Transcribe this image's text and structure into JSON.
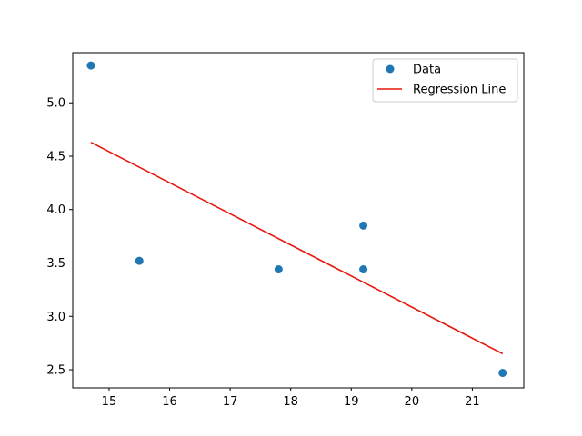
{
  "chart_data": {
    "type": "scatter",
    "title": "",
    "xlabel": "",
    "ylabel": "",
    "xlim": [
      14.4,
      21.85
    ],
    "ylim": [
      2.33,
      5.47
    ],
    "xticks": [
      15,
      16,
      17,
      18,
      19,
      20,
      21
    ],
    "yticks": [
      2.5,
      3.0,
      3.5,
      4.0,
      4.5,
      5.0
    ],
    "xtick_labels": [
      "15",
      "16",
      "17",
      "18",
      "19",
      "20",
      "21"
    ],
    "ytick_labels": [
      "2.5",
      "3.0",
      "3.5",
      "4.0",
      "4.5",
      "5.0"
    ],
    "grid": false,
    "legend_position": "top-right",
    "series": [
      {
        "name": "Data",
        "kind": "scatter",
        "color": "#1f77b4",
        "x": [
          14.7,
          15.5,
          17.8,
          19.2,
          19.2,
          21.5
        ],
        "y": [
          5.35,
          3.52,
          3.44,
          3.85,
          3.44,
          2.47
        ]
      },
      {
        "name": "Regression Line",
        "kind": "line",
        "color": "#e8160c",
        "x": [
          14.7,
          21.5
        ],
        "y": [
          4.63,
          2.65
        ]
      }
    ]
  }
}
